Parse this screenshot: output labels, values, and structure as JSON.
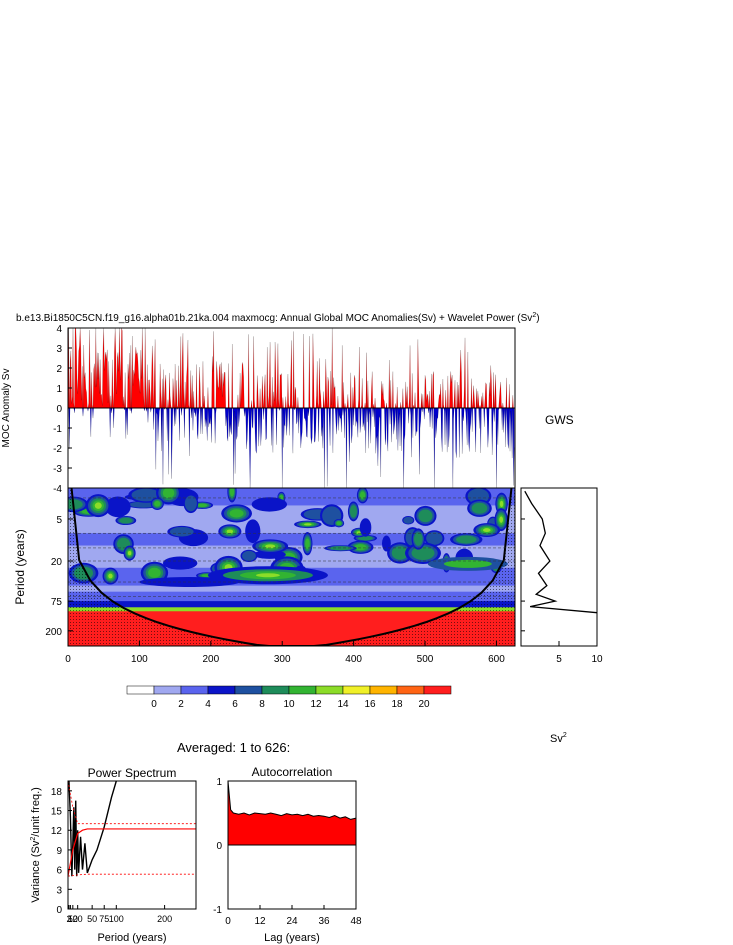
{
  "title": "b.e13.Bi1850C5CN.f19_g16.alpha01b.21ka.004 maxmocg: Annual Global MOC Anomalies(Sv) + Wavelet Power (Sv",
  "title_sup": "2",
  "title_end": ")",
  "gws_label": "GWS",
  "sv2_label": "Sv",
  "sv2_sup": "2",
  "averaged_label": "Averaged: 1 to 626:",
  "colors": {
    "positive": "#ff0000",
    "negative": "#0000cc",
    "contours": [
      "#ffffff",
      "#a0a8f0",
      "#5a64ee",
      "#0a14c8",
      "#1e50a0",
      "#1e8c5a",
      "#32b432",
      "#8cdc28",
      "#f0f028",
      "#ffb400",
      "#ff6414",
      "#ff1e1e"
    ]
  },
  "chart_data": [
    {
      "type": "bar",
      "id": "moc-anomaly",
      "ylabel": "MOC Anomaly Sv",
      "ylim": [
        -4,
        4
      ],
      "yticks": [
        "4",
        "3",
        "2",
        "1",
        "0",
        "-1",
        "-2",
        "-3",
        "-4"
      ],
      "xlim": [
        0,
        626
      ],
      "description_values": "Annual anomalies, 626 years, positive filled red, negative filled blue; early years (0-120) mostly positive up to ~4 Sv, later years mostly negative down to ~-4 Sv",
      "sample_peaks": [
        {
          "x": 10,
          "y": 4
        },
        {
          "x": 30,
          "y": 3.9
        },
        {
          "x": 50,
          "y": 4
        },
        {
          "x": 75,
          "y": 4
        },
        {
          "x": 90,
          "y": 3.6
        },
        {
          "x": 150,
          "y": 2.2
        },
        {
          "x": 230,
          "y": 3.2
        },
        {
          "x": 290,
          "y": 3.3
        },
        {
          "x": 330,
          "y": 3.7
        },
        {
          "x": 370,
          "y": 4
        },
        {
          "x": 450,
          "y": 2.4
        },
        {
          "x": 550,
          "y": 2.9
        },
        {
          "x": 560,
          "y": 2.8
        },
        {
          "x": 255,
          "y": -4
        },
        {
          "x": 300,
          "y": -4
        },
        {
          "x": 390,
          "y": -4
        },
        {
          "x": 470,
          "y": -4
        },
        {
          "x": 600,
          "y": -4
        }
      ]
    },
    {
      "type": "heatmap",
      "id": "wavelet-power",
      "xlabel": "",
      "ylabel": "Period (years)",
      "xticks": [
        "0",
        "100",
        "200",
        "300",
        "400",
        "500",
        "600"
      ],
      "yticks": [
        "5",
        "20",
        "75",
        "200"
      ],
      "colorbar_labels": [
        "0",
        "2",
        "4",
        "6",
        "8",
        "10",
        "12",
        "14",
        "16",
        "18",
        "20"
      ],
      "cone_of_influence": true
    },
    {
      "type": "line",
      "id": "gws",
      "title": "GWS",
      "xticks": [
        "5",
        "10"
      ],
      "xlabel": "Sv2",
      "values_by_period": [
        {
          "period": 2,
          "gws": 0.5
        },
        {
          "period": 3,
          "gws": 1.4
        },
        {
          "period": 5,
          "gws": 2.8
        },
        {
          "period": 8,
          "gws": 3.2
        },
        {
          "period": 12,
          "gws": 2.5
        },
        {
          "period": 20,
          "gws": 3.8
        },
        {
          "period": 30,
          "gws": 2.3
        },
        {
          "period": 45,
          "gws": 3.4
        },
        {
          "period": 60,
          "gws": 2.0
        },
        {
          "period": 75,
          "gws": 4.5
        },
        {
          "period": 90,
          "gws": 1.2
        },
        {
          "period": 110,
          "gws": 10
        }
      ]
    },
    {
      "type": "line",
      "id": "power-spectrum",
      "title": "Power Spectrum",
      "xlabel": "Period (years)",
      "ylabel": "Variance (Sv",
      "ylabel_sup": "2",
      "ylabel_end": "/unit freq.)",
      "yticks": [
        "0",
        "3",
        "6",
        "9",
        "12",
        "15",
        "18"
      ],
      "xticks": [
        "2",
        "5",
        "10",
        "20",
        "50",
        "75",
        "100",
        "200"
      ],
      "ylim": [
        0,
        19.5
      ],
      "xlim": [
        0,
        265
      ],
      "series": [
        {
          "x": [
            2,
            5,
            8,
            10,
            12,
            14,
            16,
            18,
            20,
            22,
            26,
            30,
            35,
            40,
            45,
            50,
            60,
            75,
            90,
            100
          ],
          "values": [
            19.5,
            14,
            5,
            10,
            15.5,
            6,
            16.5,
            5,
            12,
            5.5,
            11,
            6,
            10,
            5.5,
            6.5,
            7.5,
            9,
            12.5,
            17,
            19.5
          ]
        },
        {
          "x": [
            0,
            10,
            20,
            30,
            40,
            60,
            80,
            120,
            200,
            265
          ],
          "values": [
            5,
            9,
            11.5,
            12,
            12.2,
            12.2,
            12.2,
            12.2,
            12.2,
            12.2
          ]
        },
        {
          "x": [
            0,
            10,
            20,
            30,
            40,
            60,
            80,
            120,
            200,
            265
          ],
          "values": [
            19.5,
            15.5,
            13,
            13,
            13,
            13,
            13,
            13,
            13,
            13
          ]
        },
        {
          "x": [
            0,
            20,
            40,
            60,
            80,
            120,
            200,
            265
          ],
          "values": [
            5,
            5.2,
            5.3,
            5.3,
            5.3,
            5.3,
            5.3,
            5.3
          ]
        }
      ]
    },
    {
      "type": "area",
      "id": "autocorrelation",
      "title": "Autocorrelation",
      "xlabel": "Lag (years)",
      "yticks": [
        "1",
        "0",
        "-1"
      ],
      "xticks": [
        "0",
        "12",
        "24",
        "36",
        "48"
      ],
      "ylim": [
        -1,
        1
      ],
      "xlim": [
        0,
        48
      ],
      "x": [
        0,
        1,
        2,
        4,
        6,
        8,
        10,
        12,
        14,
        16,
        18,
        20,
        22,
        24,
        26,
        28,
        30,
        32,
        34,
        36,
        38,
        40,
        42,
        44,
        46,
        48
      ],
      "values": [
        1,
        0.55,
        0.5,
        0.48,
        0.5,
        0.47,
        0.5,
        0.49,
        0.48,
        0.5,
        0.48,
        0.46,
        0.49,
        0.47,
        0.48,
        0.46,
        0.48,
        0.45,
        0.46,
        0.45,
        0.43,
        0.46,
        0.42,
        0.44,
        0.4,
        0.42
      ]
    }
  ]
}
